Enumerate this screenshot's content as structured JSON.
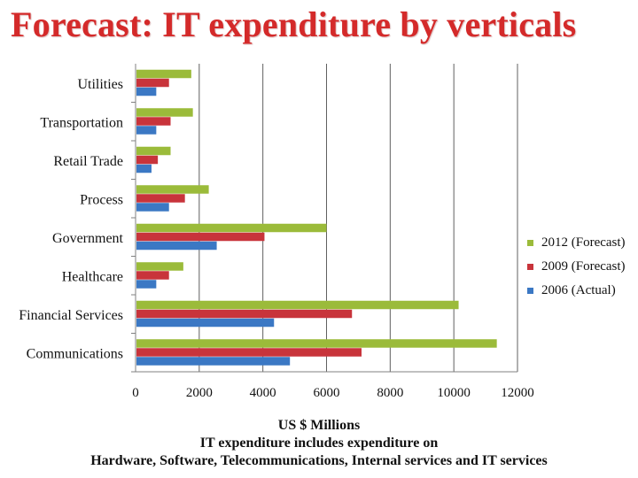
{
  "slide_title": "Forecast: IT expenditure by verticals",
  "colors": {
    "2012": "#9bbb3a",
    "2009": "#c8343b",
    "2006": "#3b78c4",
    "grid": "#606060",
    "axis": "#808080"
  },
  "chart_data": {
    "type": "bar",
    "orientation": "horizontal",
    "title": "Forecast: IT expenditure by verticals",
    "xlabel": "US $ Millions",
    "ylabel": "",
    "xlim": [
      0,
      12000
    ],
    "xticks": [
      0,
      2000,
      4000,
      6000,
      8000,
      10000,
      12000
    ],
    "grid": true,
    "legend_position": "right",
    "categories": [
      "Utilities",
      "Transportation",
      "Retail Trade",
      "Process",
      "Government",
      "Healthcare",
      "Financial Services",
      "Communications"
    ],
    "series": [
      {
        "name": "2012 (Forecast)",
        "key": "2012",
        "values": [
          1750,
          1800,
          1100,
          2300,
          6000,
          1500,
          10150,
          11350
        ]
      },
      {
        "name": "2009 (Forecast)",
        "key": "2009",
        "values": [
          1050,
          1100,
          700,
          1550,
          4050,
          1050,
          6800,
          7100
        ]
      },
      {
        "name": "2006 (Actual)",
        "key": "2006",
        "values": [
          650,
          650,
          500,
          1050,
          2550,
          650,
          4350,
          4850
        ]
      }
    ],
    "legend_order": [
      "2012 (Forecast)",
      "2009 (Forecast)",
      "2006 (Actual)"
    ],
    "notes": [
      "IT expenditure includes expenditure on",
      "Hardware, Software, Telecommunications, Internal services and IT services"
    ]
  }
}
